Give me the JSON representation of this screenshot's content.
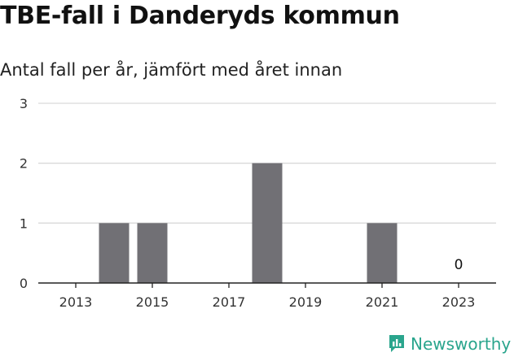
{
  "header": {
    "title": "TBE-fall i Danderyds kommun",
    "subtitle": "Antal fall per år, jämfört med året innan"
  },
  "brand": {
    "name": "Newsworthy",
    "color": "#2aa58d",
    "icon": "newsworthy-logo-icon"
  },
  "colors": {
    "bar": "#717075",
    "grid": "#d9d9d9",
    "axis": "#222222"
  },
  "chart_data": {
    "type": "bar",
    "title": "TBE-fall i Danderyds kommun",
    "subtitle": "Antal fall per år, jämfört med året innan",
    "xlabel": "",
    "ylabel": "",
    "categories": [
      2013,
      2014,
      2015,
      2016,
      2017,
      2018,
      2019,
      2020,
      2021,
      2022,
      2023
    ],
    "values": [
      0,
      1,
      1,
      0,
      0,
      2,
      0,
      0,
      1,
      0,
      0
    ],
    "ylim": [
      0,
      3
    ],
    "yticks": [
      0,
      1,
      2,
      3
    ],
    "xticks": [
      2013,
      2015,
      2017,
      2019,
      2021,
      2023
    ],
    "grid": true,
    "annotations": [
      {
        "x": 2023,
        "text": "0"
      }
    ]
  }
}
